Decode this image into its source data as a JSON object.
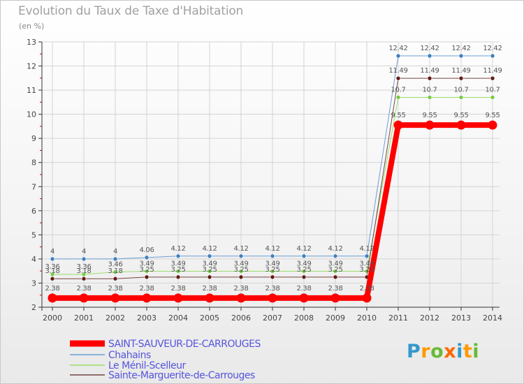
{
  "chart_data": {
    "type": "line",
    "title": "Evolution du Taux de Taxe d'Habitation",
    "subtitle": "(en %)",
    "x": [
      "2000",
      "2001",
      "2002",
      "2003",
      "2004",
      "2005",
      "2006",
      "2007",
      "2008",
      "2009",
      "2010",
      "2011",
      "2012",
      "2013",
      "2014"
    ],
    "ylim": [
      2,
      13
    ],
    "yticks": [
      2,
      3,
      4,
      5,
      6,
      7,
      8,
      9,
      10,
      11,
      12,
      13
    ],
    "grid": true,
    "legend_position": "bottom-left",
    "series": [
      {
        "name": "Chahains",
        "color": "#6a9ed4",
        "marker": "#3f7fbf",
        "width": 1,
        "values": [
          4,
          4,
          4,
          4.06,
          4.12,
          4.12,
          4.12,
          4.12,
          4.12,
          4.12,
          4.12,
          12.42,
          12.42,
          12.42,
          12.42
        ]
      },
      {
        "name": "Le Ménil-Scelleur",
        "color": "#99dd66",
        "marker": "#77cc44",
        "width": 1,
        "values": [
          3.36,
          3.36,
          3.46,
          3.49,
          3.49,
          3.49,
          3.49,
          3.49,
          3.49,
          3.49,
          3.49,
          10.7,
          10.7,
          10.7,
          10.7
        ]
      },
      {
        "name": "Sainte-Marguerite-de-Carrouges",
        "color": "#774444",
        "marker": "#661a1a",
        "width": 1,
        "values": [
          3.18,
          3.18,
          3.18,
          3.25,
          3.25,
          3.25,
          3.25,
          3.25,
          3.25,
          3.25,
          3.25,
          11.49,
          11.49,
          11.49,
          11.49
        ]
      },
      {
        "name": "SAINT-SAUVEUR-DE-CARROUGES",
        "color": "#ff0000",
        "marker": "#ff0000",
        "width": 8,
        "values": [
          2.38,
          2.38,
          2.38,
          2.38,
          2.38,
          2.38,
          2.38,
          2.38,
          2.38,
          2.38,
          2.38,
          9.55,
          9.55,
          9.55,
          9.55
        ]
      }
    ],
    "value_labels": [
      {
        "series": 0,
        "labels": [
          "4",
          "4",
          "4",
          "4.06",
          "4.12",
          "4.12",
          "4.12",
          "4.12",
          "4.12",
          "4.12",
          "4.12",
          "12.42",
          "12.42",
          "12.42",
          "12.42"
        ]
      },
      {
        "series": 1,
        "labels": [
          "3.36",
          "3.36",
          "3.46",
          "3.49",
          "3.49",
          "3.49",
          "3.49",
          "3.49",
          "3.49",
          "3.49",
          "3.49",
          "10.7",
          "10.7",
          "10.7",
          "10.7"
        ]
      },
      {
        "series": 2,
        "labels": [
          "3.18",
          "3.18",
          "3.18",
          "3.25",
          "3.25",
          "3.25",
          "3.25",
          "3.25",
          "3.25",
          "3.25",
          "3.25",
          "11.49",
          "11.49",
          "11.49",
          "11.49"
        ]
      },
      {
        "series": 3,
        "labels": [
          "2.38",
          "2.38",
          "2.38",
          "2.38",
          "2.38",
          "2.38",
          "2.38",
          "2.38",
          "2.38",
          "2.38",
          "2.38",
          "9.55",
          "9.55",
          "9.55",
          "9.55"
        ]
      }
    ]
  },
  "legend": [
    {
      "label": "SAINT-SAUVEUR-DE-CARROUGES",
      "color": "#ff0000",
      "text_color": "#5555dd"
    },
    {
      "label": "Chahains",
      "color": "#6a9ed4",
      "text_color": "#5555dd"
    },
    {
      "label": "Le Ménil-Scelleur",
      "color": "#99dd66",
      "text_color": "#5555dd"
    },
    {
      "label": "Sainte-Marguerite-de-Carrouges",
      "color": "#774444",
      "text_color": "#5555dd"
    }
  ],
  "logo": {
    "letters": [
      "P",
      "r",
      "o",
      "x",
      "i",
      "t",
      "i"
    ],
    "colors": [
      "#3399cc",
      "#ff9900",
      "#66bb33",
      "#ff6600",
      "#3399cc",
      "#ff9900",
      "#66bb33"
    ]
  }
}
